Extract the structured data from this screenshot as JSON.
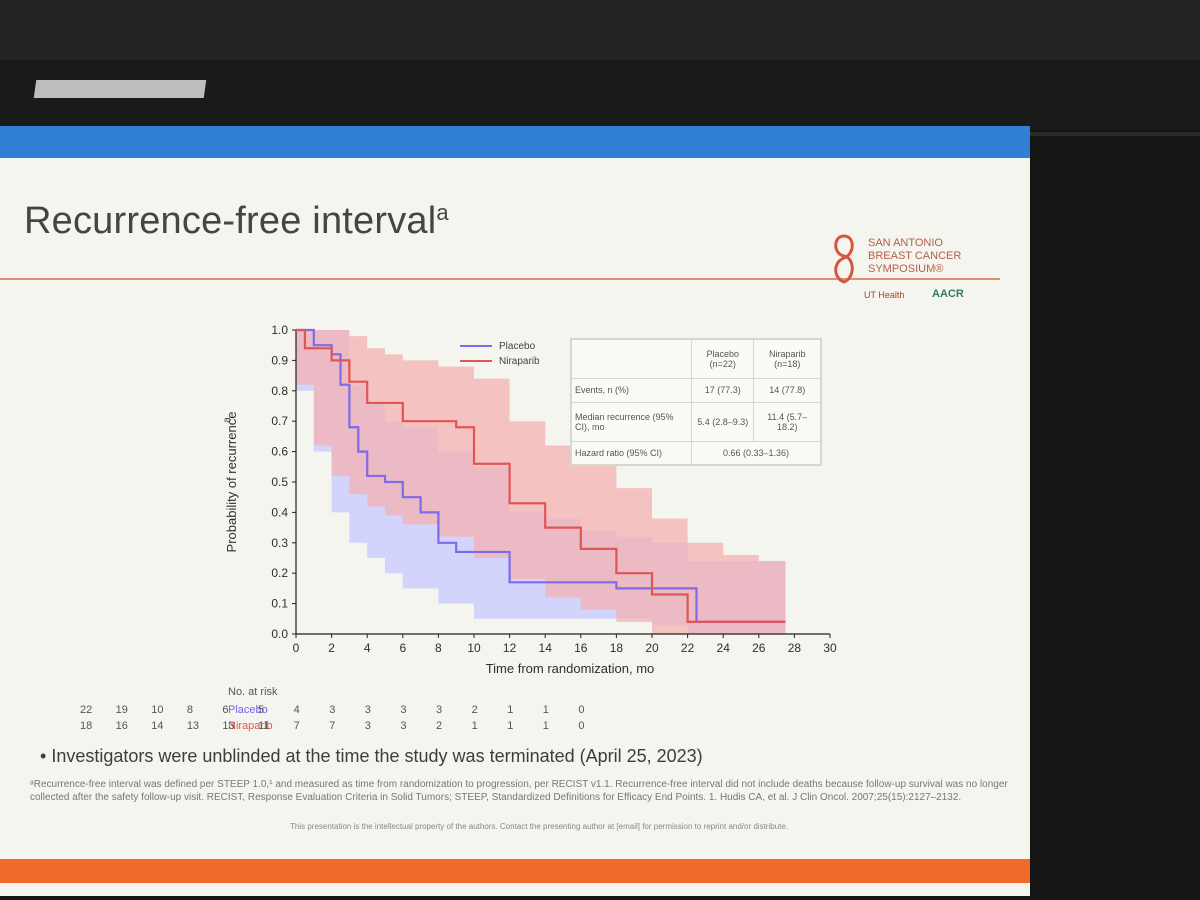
{
  "slide": {
    "title": "Recurrence-free interval",
    "title_superscript": "a",
    "logo": {
      "line1": "SAN ANTONIO",
      "line2": "BREAST CANCER",
      "line3": "SYMPOSIUM®",
      "ut": "UT Health",
      "aacr": "AACR"
    },
    "bullet": "Investigators were unblinded at the time the study was terminated (April 25, 2023)",
    "footnote": "ᵃRecurrence-free interval was defined per STEEP 1.0,¹ and measured as time from randomization to progression, per RECIST v1.1. Recurrence-free interval did not include deaths because follow-up survival was no longer collected after the safety follow-up visit. RECIST, Response Evaluation Criteria in Solid Tumors; STEEP, Standardized Definitions for Efficacy End Points. 1. Hudis CA, et al. J Clin Oncol. 2007;25(15):2127–2132.",
    "bottom_notice": "This presentation is the intellectual property of the authors. Contact the presenting author at [email] for permission to reprint and/or distribute."
  },
  "chart_data": {
    "type": "line",
    "title": "",
    "xlabel": "Time from randomization, mo",
    "ylabel": "Probability of recurrence",
    "ylabel_superscript": "a",
    "xlim": [
      0,
      30
    ],
    "ylim": [
      0,
      1.0
    ],
    "x_ticks": [
      "0",
      "2",
      "4",
      "6",
      "8",
      "10",
      "12",
      "14",
      "16",
      "18",
      "20",
      "22",
      "24",
      "26",
      "28",
      "30"
    ],
    "y_ticks": [
      "0.0",
      "0.1",
      "0.2",
      "0.3",
      "0.4",
      "0.5",
      "0.6",
      "0.7",
      "0.8",
      "0.9",
      "1.0"
    ],
    "legend": [
      "Placebo",
      "Niraparib"
    ],
    "colors": {
      "placebo": "#7f6ae8",
      "niraparib": "#e25555",
      "placebo_ci": "#c8c8ff",
      "niraparib_ci": "#f4b0b0",
      "overlap_ci": "#dca6ea"
    },
    "series": [
      {
        "name": "Placebo",
        "x": [
          0,
          1.0,
          1.5,
          2.0,
          2.5,
          3.0,
          3.5,
          4.0,
          5.0,
          6.0,
          7.0,
          8.0,
          9.0,
          10.0,
          12.0,
          14.0,
          16.0,
          18.0,
          20.0,
          22.0,
          22.5,
          24.0,
          26.0,
          27.5
        ],
        "y": [
          1.0,
          0.95,
          0.95,
          0.92,
          0.82,
          0.68,
          0.6,
          0.52,
          0.5,
          0.45,
          0.4,
          0.3,
          0.27,
          0.27,
          0.17,
          0.17,
          0.17,
          0.15,
          0.15,
          0.15,
          0.04,
          0.04,
          0.04,
          0.04
        ]
      },
      {
        "name": "Niraparib",
        "x": [
          0,
          0.5,
          1.0,
          2.0,
          3.0,
          4.0,
          5.0,
          6.0,
          8.0,
          9.0,
          10.0,
          11.0,
          12.0,
          14.0,
          16.0,
          18.0,
          20.0,
          22.0,
          24.0,
          26.0,
          27.5
        ],
        "y": [
          1.0,
          0.94,
          0.94,
          0.9,
          0.83,
          0.76,
          0.76,
          0.7,
          0.7,
          0.68,
          0.56,
          0.56,
          0.43,
          0.35,
          0.28,
          0.2,
          0.13,
          0.04,
          0.04,
          0.04,
          0.04
        ]
      }
    ],
    "placebo_ci": {
      "x": [
        0,
        1,
        2,
        3,
        4,
        5,
        6,
        8,
        10,
        12,
        14,
        16,
        18,
        20,
        22,
        24,
        26,
        27.5
      ],
      "lower": [
        0.8,
        0.8,
        0.6,
        0.4,
        0.3,
        0.25,
        0.2,
        0.15,
        0.1,
        0.05,
        0.05,
        0.05,
        0.05,
        0.05,
        0.03,
        0.0,
        0.0,
        0.0
      ],
      "upper": [
        1.0,
        1.0,
        1.0,
        0.82,
        0.76,
        0.7,
        0.68,
        0.6,
        0.55,
        0.4,
        0.38,
        0.34,
        0.32,
        0.3,
        0.24,
        0.24,
        0.24,
        0.24
      ]
    },
    "niraparib_ci": {
      "x": [
        0,
        1,
        2,
        3,
        4,
        5,
        6,
        8,
        10,
        12,
        14,
        16,
        18,
        20,
        22,
        24,
        26,
        27.5
      ],
      "lower": [
        0.8,
        0.82,
        0.62,
        0.52,
        0.46,
        0.42,
        0.39,
        0.36,
        0.32,
        0.25,
        0.18,
        0.12,
        0.08,
        0.04,
        0.0,
        0.0,
        0.0,
        0.0
      ],
      "upper": [
        1.0,
        1.0,
        1.0,
        0.98,
        0.94,
        0.92,
        0.9,
        0.88,
        0.84,
        0.7,
        0.62,
        0.56,
        0.48,
        0.38,
        0.3,
        0.26,
        0.24,
        0.24
      ]
    },
    "table": {
      "headers": [
        "",
        "Placebo (n=22)",
        "Niraparib (n=18)"
      ],
      "rows": [
        [
          "Events, n (%)",
          "17 (77.3)",
          "14 (77.8)"
        ],
        [
          "Median recurrence (95% CI), mo",
          "5.4 (2.8–9.3)",
          "11.4 (5.7–18.2)"
        ],
        [
          "Hazard ratio (95% CI)",
          "0.66 (0.33–1.36)",
          ""
        ]
      ]
    },
    "at_risk": {
      "label": "No. at risk",
      "placebo_label": "Placebo",
      "niraparib_label": "Niraparib",
      "placebo": [
        "22",
        "19",
        "10",
        "8",
        "6",
        "5",
        "4",
        "3",
        "3",
        "3",
        "3",
        "2",
        "1",
        "1",
        "0"
      ],
      "niraparib": [
        "18",
        "16",
        "14",
        "13",
        "13",
        "11",
        "7",
        "7",
        "3",
        "3",
        "2",
        "1",
        "1",
        "1",
        "0"
      ]
    }
  }
}
